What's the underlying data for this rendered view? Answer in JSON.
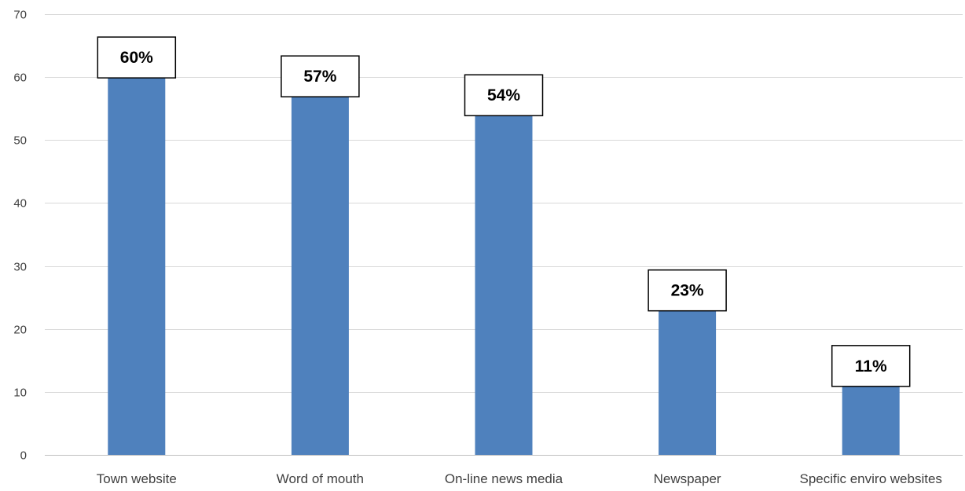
{
  "chart_data": {
    "type": "bar",
    "title": "",
    "xlabel": "",
    "ylabel": "",
    "categories": [
      "Town website",
      "Word of mouth",
      "On-line news media",
      "Newspaper",
      "Specific enviro websites"
    ],
    "values": [
      60,
      57,
      54,
      23,
      11
    ],
    "data_labels": [
      "60%",
      "57%",
      "54%",
      "23%",
      "11%"
    ],
    "ylim": [
      0,
      70
    ],
    "yticks": [
      0,
      10,
      20,
      30,
      40,
      50,
      60,
      70
    ],
    "ytick_labels": [
      "0",
      "10",
      "20",
      "30",
      "40",
      "50",
      "60",
      "70"
    ],
    "grid": true,
    "legend": "none",
    "colors": {
      "bar": "#4f81bd",
      "grid": "#d9d9d9",
      "label_border": "#000000"
    }
  }
}
